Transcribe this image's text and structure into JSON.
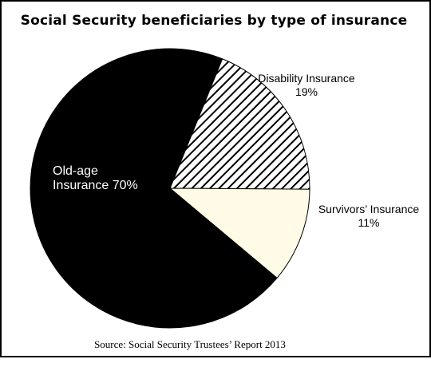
{
  "chart_data": {
    "type": "pie",
    "title": "Social Security beneficiaries by type of insurance",
    "source": "Source: Social Security Trustees’ Report 2013",
    "slices": [
      {
        "name": "Disability Insurance",
        "value": 19,
        "value_label": "19%",
        "fill": "hatched",
        "color": "#000000"
      },
      {
        "name": "Survivors’ Insurance",
        "value": 11,
        "value_label": "11%",
        "fill": "solid",
        "color": "#fffbe6"
      },
      {
        "name": "Old-age Insurance",
        "line1": "Old-age",
        "line2": "Insurance 70%",
        "value": 70,
        "fill": "solid",
        "color": "#000000"
      }
    ]
  }
}
